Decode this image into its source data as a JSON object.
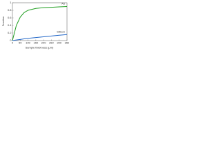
{
  "chart_data": {
    "type": "line",
    "y_label": "Fraction",
    "x_label": "Sample thickness (μm)",
    "x": [
      0,
      25,
      50,
      75,
      100,
      150,
      200,
      250,
      300,
      350
    ],
    "series": [
      {
        "name": "Au",
        "color": "#1f9e1f",
        "values": [
          0,
          0.4,
          0.62,
          0.74,
          0.8,
          0.85,
          0.87,
          0.88,
          0.89,
          0.9
        ]
      },
      {
        "name": "Silicon",
        "color": "#2166c8",
        "values": [
          0,
          0.015,
          0.03,
          0.045,
          0.06,
          0.08,
          0.1,
          0.12,
          0.14,
          0.16
        ]
      }
    ],
    "xlim": [
      0,
      350
    ],
    "xticks": [
      0,
      50,
      100,
      150,
      200,
      250,
      300,
      350
    ],
    "ylim": [
      0,
      1
    ],
    "yticks": [
      0,
      0.2,
      0.4,
      0.6,
      0.8,
      1
    ]
  }
}
